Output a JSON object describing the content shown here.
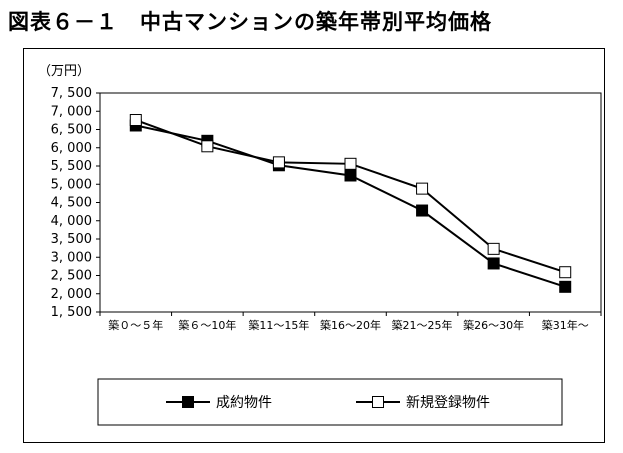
{
  "figure": {
    "title": "図表６－１　中古マンションの築年帯別平均価格"
  },
  "chart_data": {
    "type": "line",
    "unit_label": "（万円）",
    "categories": [
      "築０～５年",
      "築６～10年",
      "築11～15年",
      "築16～20年",
      "築21～25年",
      "築26～30年",
      "築31年～"
    ],
    "series": [
      {
        "name": "成約物件",
        "marker": "filled-square",
        "values": [
          6610,
          6190,
          5520,
          5240,
          4280,
          2830,
          2190
        ]
      },
      {
        "name": "新規登録物件",
        "marker": "open-square",
        "values": [
          6760,
          6040,
          5600,
          5560,
          4880,
          3230,
          2590
        ]
      }
    ],
    "ylim": [
      1500,
      7500
    ],
    "yticks": [
      "1, 500",
      "2, 000",
      "2, 500",
      "3, 000",
      "3, 500",
      "4, 000",
      "4, 500",
      "5, 000",
      "5, 500",
      "6, 000",
      "6, 500",
      "7, 000",
      "7, 500"
    ],
    "grid": false,
    "legend_position": "bottom",
    "colors": {
      "line": "#000000",
      "filled_marker": "#000000",
      "open_marker": "#ffffff"
    }
  }
}
